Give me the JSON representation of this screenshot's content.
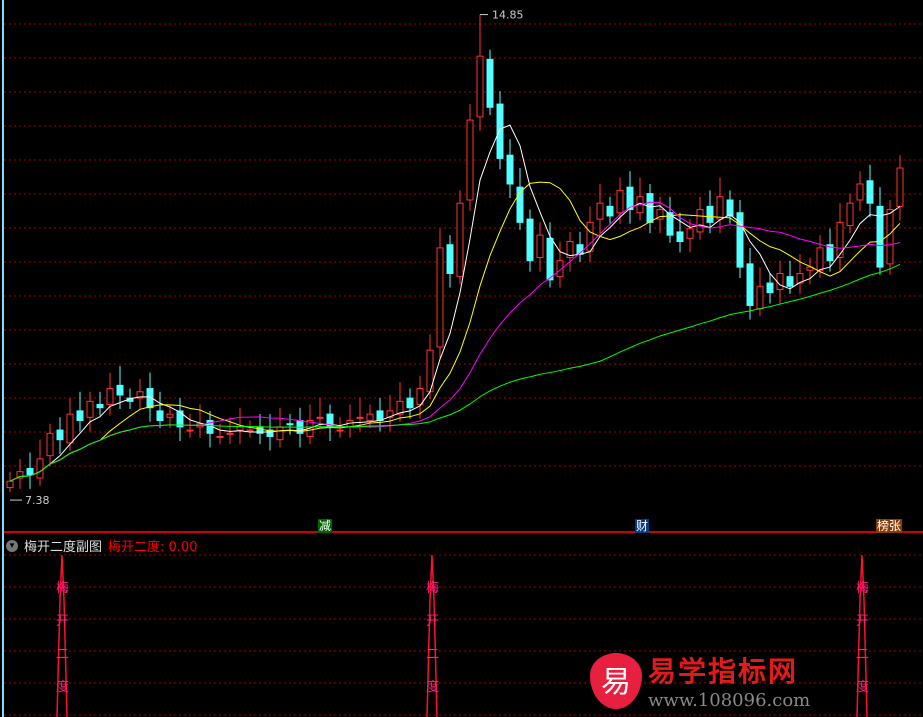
{
  "chart_data": {
    "type": "candlestick",
    "close": [
      7.55,
      7.7,
      7.65,
      7.9,
      8.3,
      8.2,
      8.6,
      8.5,
      8.8,
      8.7,
      9.0,
      8.9,
      8.8,
      8.95,
      8.7,
      8.5,
      8.6,
      8.4,
      8.35,
      8.45,
      8.3,
      8.25,
      8.3,
      8.4,
      8.35,
      8.3,
      8.25,
      8.4,
      8.45,
      8.3,
      8.5,
      8.55,
      8.4,
      8.35,
      8.5,
      8.55,
      8.6,
      8.5,
      8.65,
      8.8,
      8.7,
      9.0,
      9.6,
      11.2,
      10.8,
      11.9,
      13.2,
      14.2,
      13.4,
      12.6,
      12.2,
      11.6,
      11.0,
      11.4,
      10.7,
      11.0,
      11.3,
      11.1,
      11.6,
      11.9,
      11.7,
      12.1,
      11.8,
      12.0,
      11.6,
      11.8,
      11.4,
      11.3,
      11.5,
      11.8,
      11.6,
      12.0,
      11.7,
      10.9,
      10.3,
      10.6,
      10.5,
      10.8,
      10.6,
      10.8,
      10.9,
      11.2,
      11.0,
      11.6,
      11.9,
      12.2,
      11.9,
      10.9,
      11.8,
      12.45
    ],
    "max_label": "14.85",
    "max_value": 14.85,
    "max_index": 47,
    "min_label": "7.38",
    "min_value": 7.38,
    "min_index": 0,
    "ma_periods": [
      5,
      10,
      20,
      60
    ],
    "ma_colors": [
      "#ffffff",
      "#ffff00",
      "#ff00ff",
      "#00ff00"
    ],
    "up_color": "#ff3232",
    "down_color": "#54ffff",
    "ylim": [
      7.1,
      15.0
    ],
    "grid": true,
    "signal_indices": [
      5,
      42,
      85
    ],
    "signal_text": [
      "梅",
      "开",
      "二",
      "度"
    ]
  },
  "markers": [
    {
      "label": "减",
      "bg": "#006400"
    },
    {
      "label": "财",
      "bg": "#003a80"
    },
    {
      "label": "榜张",
      "bg": "#8b3a00"
    }
  ],
  "sub": {
    "title": "梅开二度副图",
    "indicator": "梅开二度: 0.00"
  },
  "watermark": {
    "logo": "易",
    "name": "易学指标网",
    "url": "www.108096.com"
  }
}
